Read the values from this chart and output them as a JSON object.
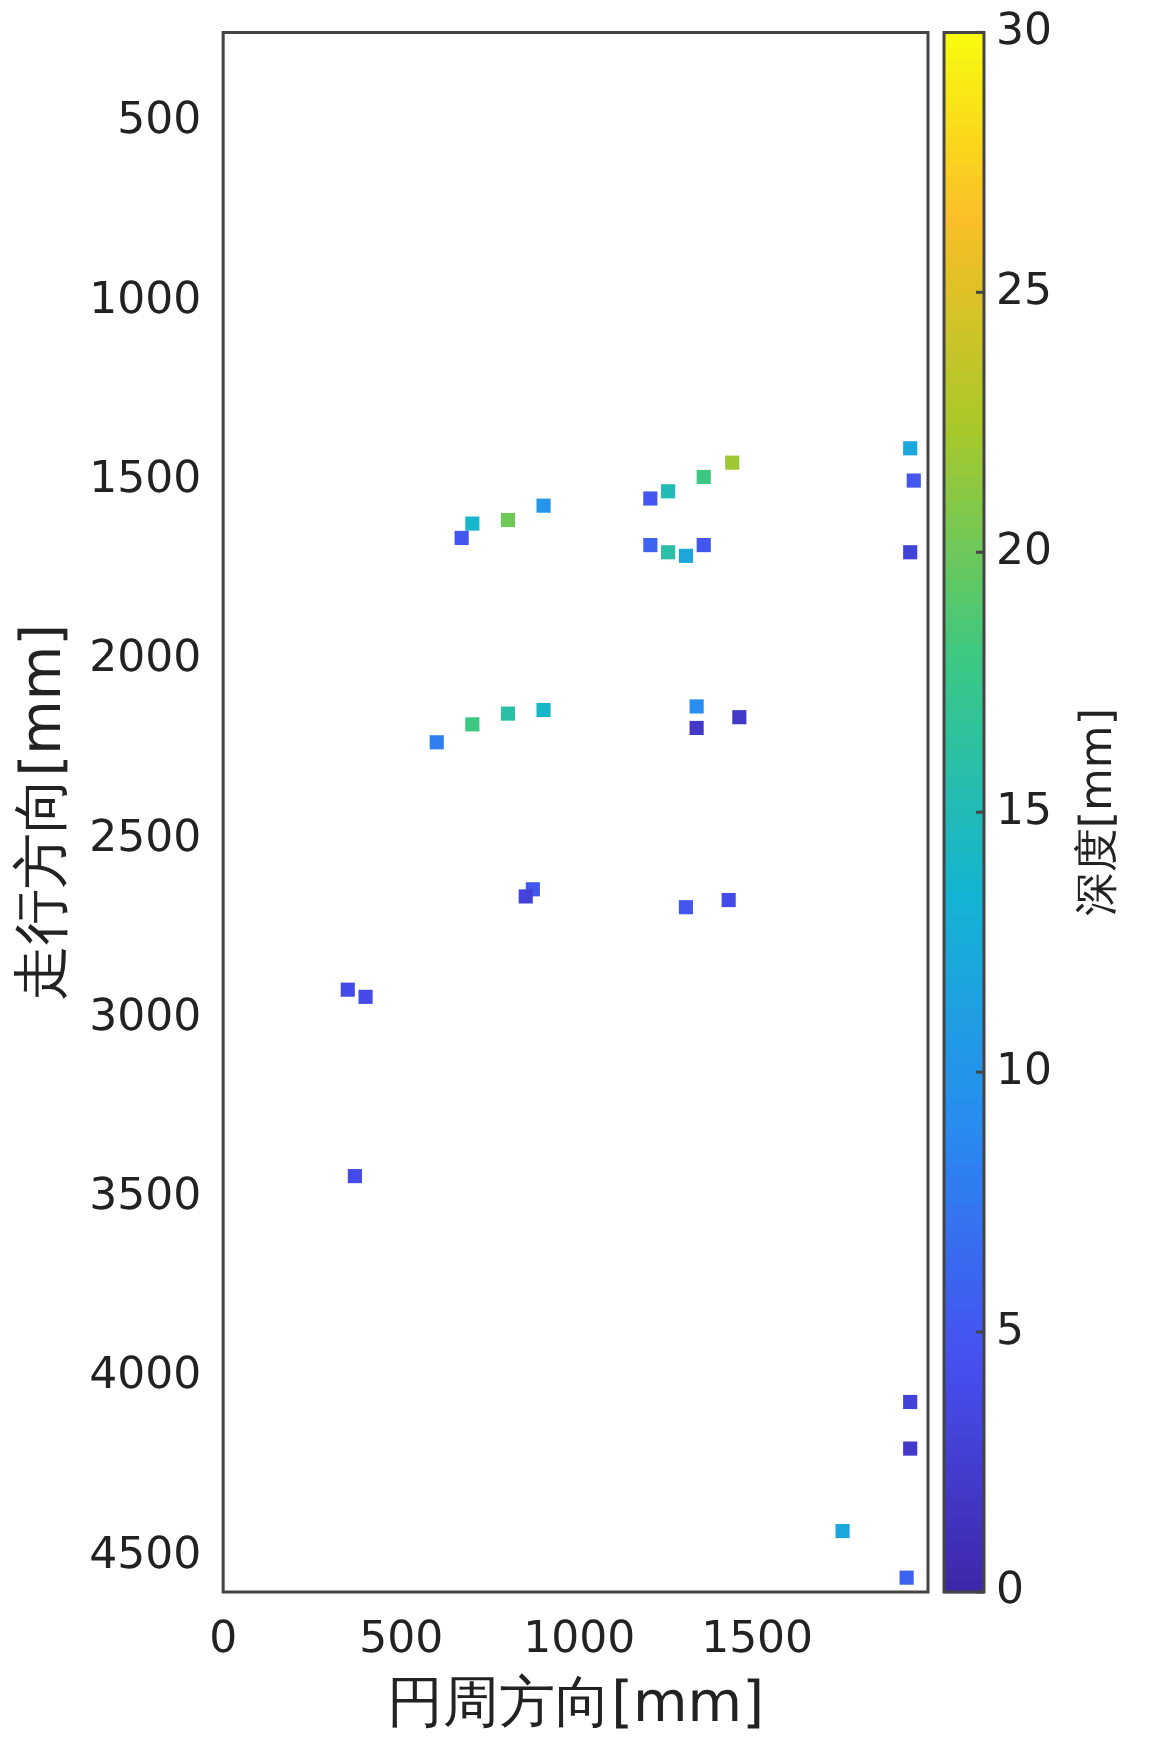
{
  "chart_data": {
    "type": "scatter",
    "xlabel": "円周方向[mm]",
    "ylabel": "走行方向[mm]",
    "clabel": "深度[mm]",
    "xlim": [
      0,
      1980
    ],
    "xticks": [
      0,
      500,
      1000,
      1500
    ],
    "ylim": [
      4600,
      250
    ],
    "yticks": [
      500,
      1000,
      1500,
      2000,
      2500,
      3000,
      3500,
      4000,
      4500
    ],
    "clim": [
      0,
      30
    ],
    "cticks": [
      0,
      5,
      10,
      15,
      20,
      25,
      30
    ],
    "grid": false,
    "legend": false,
    "marker": "square",
    "x": [
      700,
      800,
      900,
      670,
      1250,
      1350,
      1430,
      1200,
      1250,
      1300,
      1200,
      1350,
      1930,
      1940,
      1930,
      600,
      700,
      800,
      900,
      1330,
      1450,
      1330,
      870,
      850,
      1300,
      1420,
      350,
      400,
      370,
      1930,
      1930,
      1740,
      1920
    ],
    "values": [
      1620,
      1610,
      1570,
      1660,
      1530,
      1490,
      1450,
      1550,
      1700,
      1710,
      1680,
      1680,
      1410,
      1500,
      1700,
      2230,
      2180,
      2150,
      2140,
      2130,
      2160,
      2190,
      2640,
      2660,
      2690,
      2670,
      2920,
      2940,
      3440,
      4070,
      4200,
      4430,
      4560
    ],
    "cvalues": [
      14,
      20,
      10,
      5,
      15,
      18,
      22,
      5,
      16,
      12,
      6,
      5,
      12,
      5,
      3,
      8,
      18,
      16,
      14,
      9,
      2,
      2,
      5,
      3,
      5,
      4,
      4,
      4,
      4,
      3,
      2,
      12,
      6
    ]
  }
}
